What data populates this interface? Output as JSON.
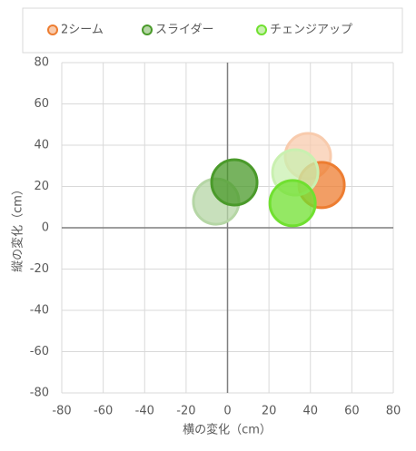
{
  "chart_data": {
    "type": "scatter",
    "x_label": "横の変化（cm）",
    "y_label": "縦の変化（cm）",
    "xlim": [
      -80,
      80
    ],
    "ylim": [
      -80,
      80
    ],
    "xticks": [
      -80,
      -60,
      -40,
      -20,
      0,
      20,
      40,
      60,
      80
    ],
    "yticks": [
      -80,
      -60,
      -40,
      -20,
      0,
      20,
      40,
      60,
      80
    ],
    "grid": true,
    "legend": "top",
    "series": [
      {
        "name": "2シーム",
        "color": "#ed7d31",
        "point_colors": [
          "#f8cbad",
          "#ed7d31"
        ],
        "x": [
          38.8,
          45.4
        ],
        "values": [
          34.7,
          20.7
        ]
      },
      {
        "name": "スライダー",
        "color": "#4a9a2a",
        "point_colors": [
          "#b5d6a5",
          "#4a9a2a"
        ],
        "x": [
          -5.5,
          3.3
        ],
        "values": [
          12.7,
          22.0
        ]
      },
      {
        "name": "チェンジアップ",
        "color": "#70e030",
        "point_colors": [
          "#c9f0b0",
          "#70e030"
        ],
        "x": [
          32.7,
          31.4
        ],
        "values": [
          26.8,
          11.9
        ]
      }
    ]
  }
}
